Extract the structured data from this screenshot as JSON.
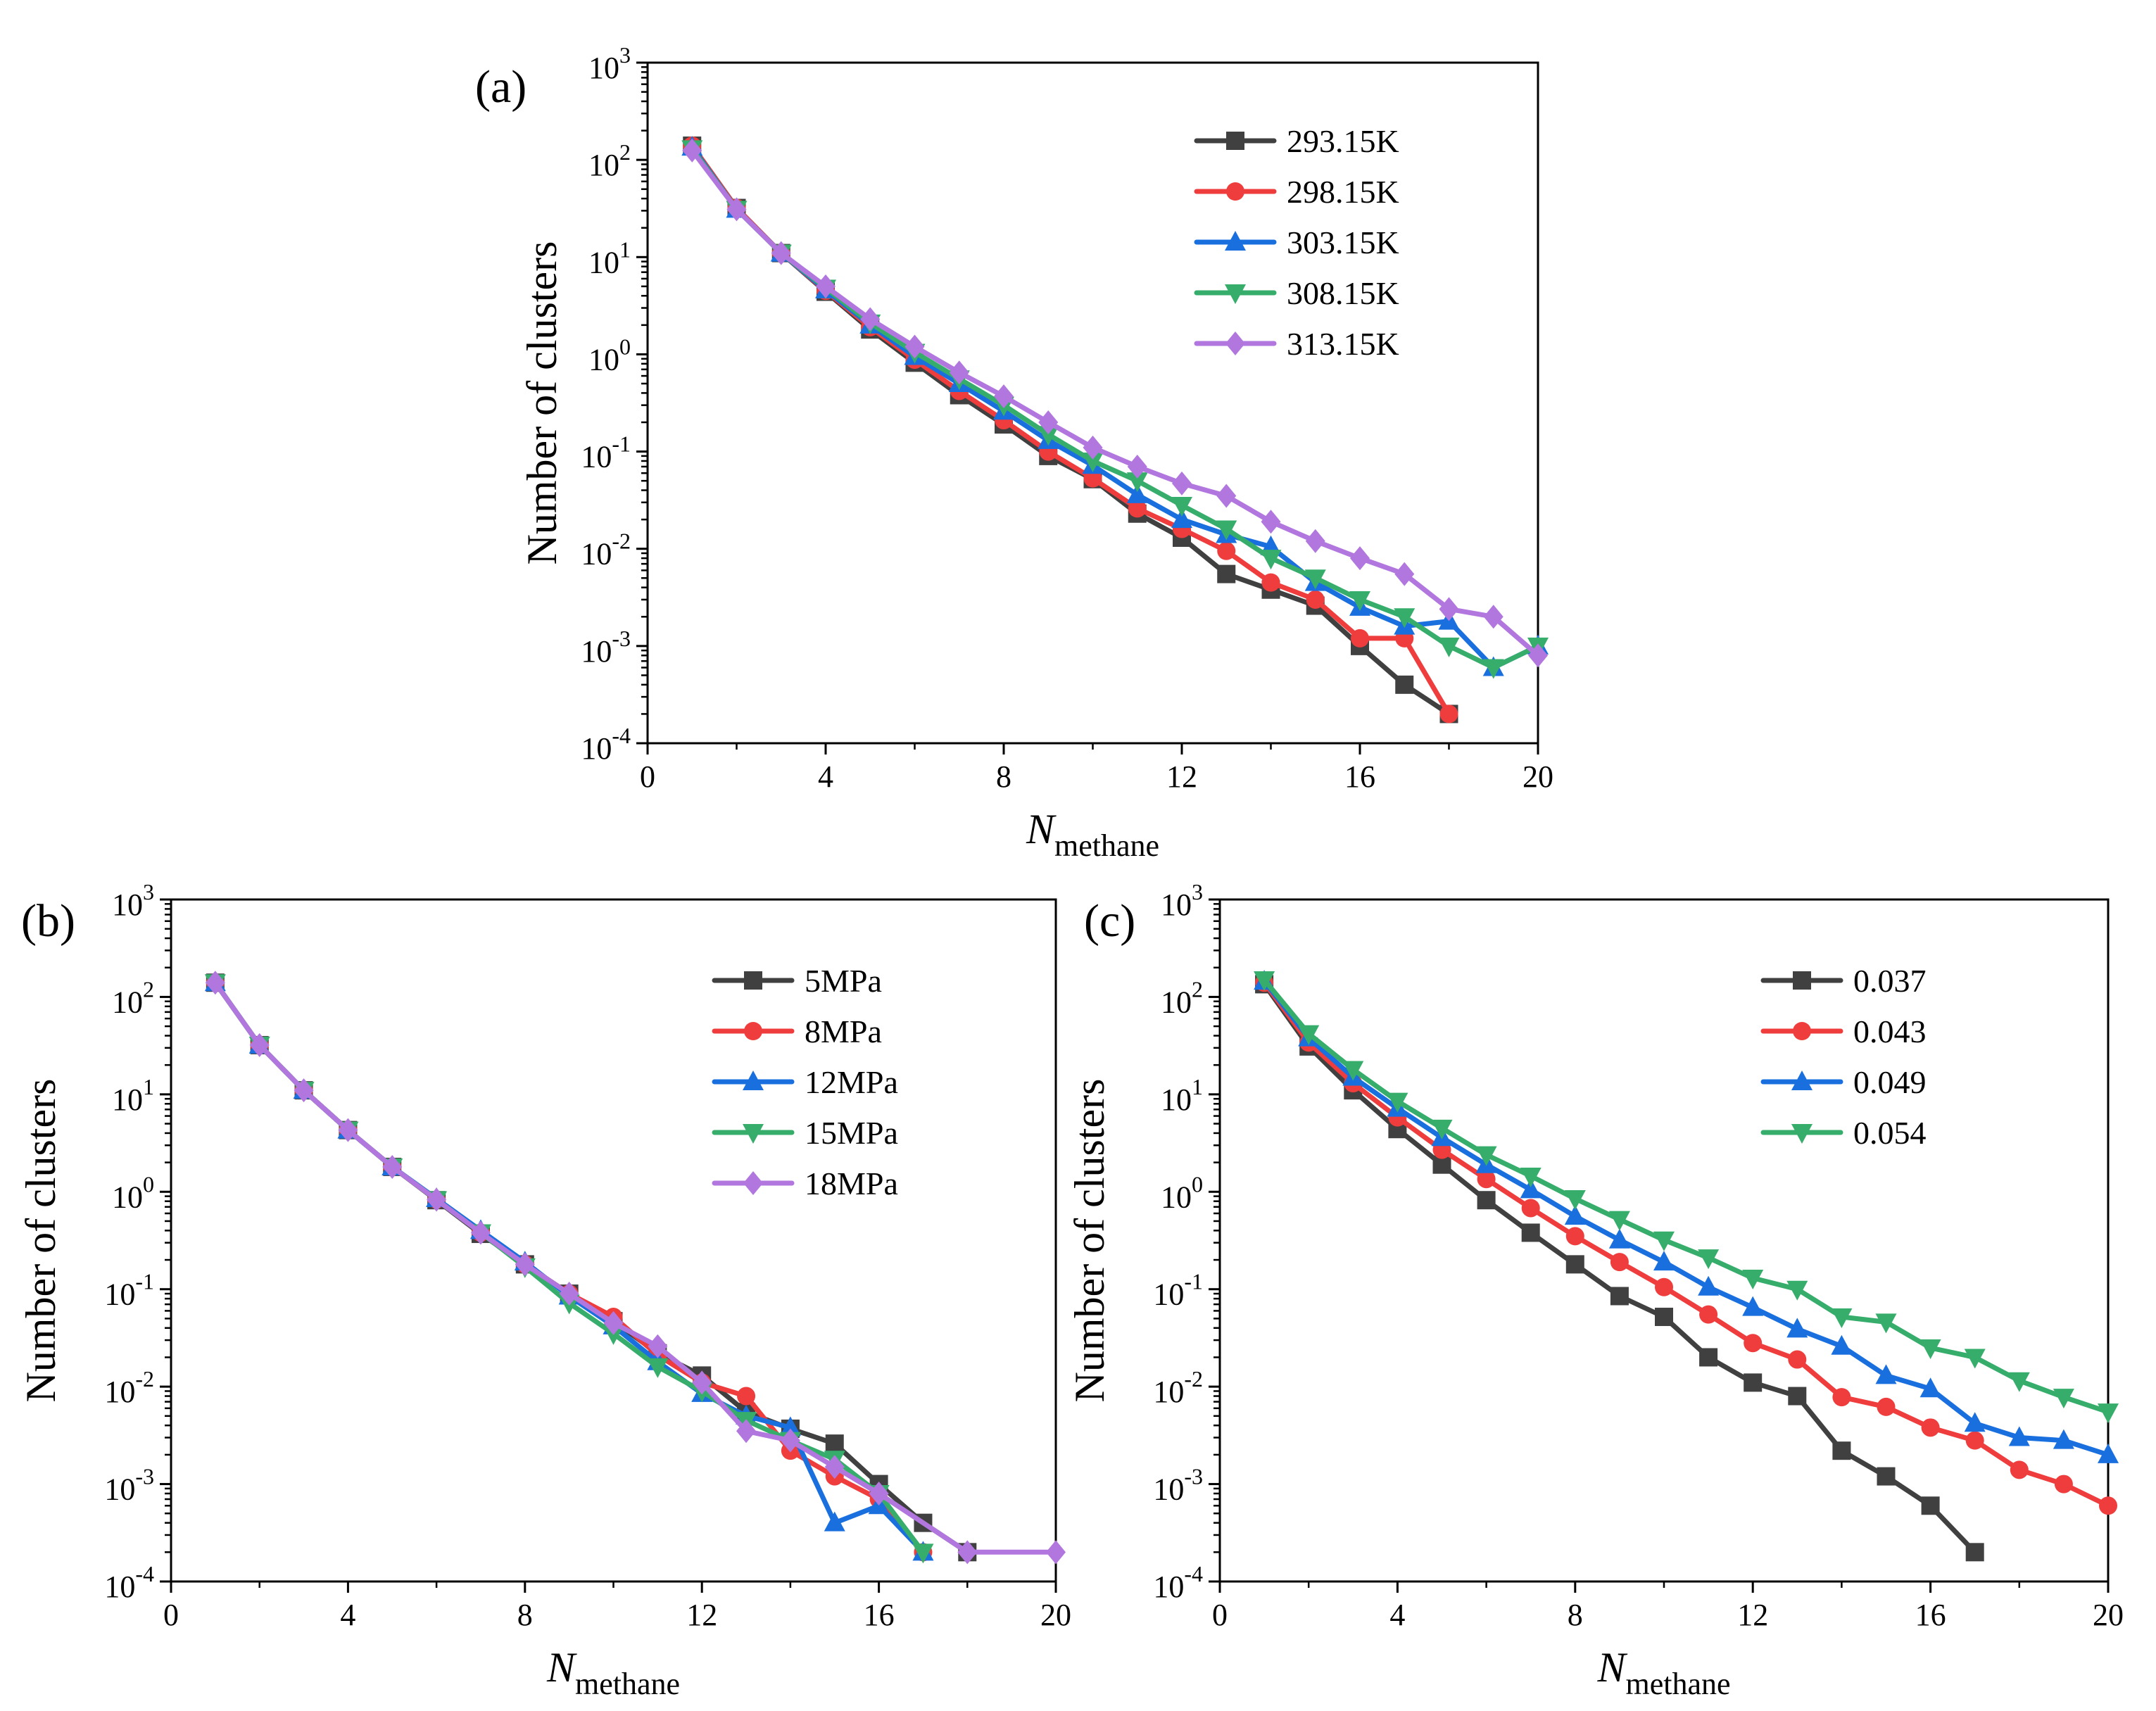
{
  "chart_data": [
    {
      "id": "a",
      "type": "line",
      "panel_label": "(a)",
      "xlabel": "N",
      "xlabel_sub": "methane",
      "ylabel": "Number of clusters",
      "yscale": "log",
      "xlim": [
        0,
        20
      ],
      "ylim": [
        0.0001,
        1000
      ],
      "xticks": [
        0,
        4,
        8,
        12,
        16,
        20
      ],
      "yticks": [
        {
          "mant": "10",
          "exp": "-4"
        },
        {
          "mant": "10",
          "exp": "-3"
        },
        {
          "mant": "10",
          "exp": "-2"
        },
        {
          "mant": "10",
          "exp": "-1"
        },
        {
          "mant": "10",
          "exp": "0"
        },
        {
          "mant": "10",
          "exp": "1"
        },
        {
          "mant": "10",
          "exp": "2"
        },
        {
          "mant": "10",
          "exp": "3"
        }
      ],
      "legend_position": "top-right",
      "series": [
        {
          "name": "293.15K",
          "color": "#404040",
          "marker": "square",
          "x": [
            1,
            2,
            3,
            4,
            5,
            6,
            7,
            8,
            9,
            10,
            11,
            12,
            13,
            14,
            15,
            16,
            17,
            18
          ],
          "y": [
            140,
            32,
            11,
            4.4,
            1.8,
            0.82,
            0.38,
            0.19,
            0.09,
            0.052,
            0.023,
            0.013,
            0.0055,
            0.0038,
            0.0026,
            0.001,
            0.0004,
            0.0002
          ]
        },
        {
          "name": "298.15K",
          "color": "#ef3c3c",
          "marker": "circle",
          "x": [
            1,
            2,
            3,
            4,
            5,
            6,
            7,
            8,
            9,
            10,
            11,
            12,
            13,
            14,
            15,
            16,
            17,
            18
          ],
          "y": [
            140,
            32,
            11,
            4.5,
            1.9,
            0.88,
            0.42,
            0.21,
            0.1,
            0.053,
            0.026,
            0.016,
            0.0095,
            0.0045,
            0.003,
            0.0012,
            0.0012,
            0.0002
          ]
        },
        {
          "name": "303.15K",
          "color": "#1a6fdf",
          "marker": "triangle-up",
          "x": [
            1,
            2,
            3,
            4,
            5,
            6,
            7,
            8,
            9,
            10,
            11,
            12,
            13,
            14,
            15,
            16,
            17,
            18,
            19,
            20
          ],
          "y": [
            135,
            31,
            11,
            4.6,
            2.0,
            0.95,
            0.5,
            0.26,
            0.13,
            0.072,
            0.036,
            0.02,
            0.014,
            0.0105,
            0.0045,
            0.0025,
            0.0016,
            0.0018,
            0.0006,
            0.001
          ]
        },
        {
          "name": "308.15K",
          "color": "#37ad6b",
          "marker": "triangle-down",
          "x": [
            1,
            2,
            3,
            4,
            5,
            6,
            7,
            8,
            9,
            10,
            11,
            12,
            13,
            14,
            15,
            16,
            17,
            18,
            19,
            20
          ],
          "y": [
            130,
            31,
            11,
            4.8,
            2.1,
            1.05,
            0.56,
            0.3,
            0.15,
            0.08,
            0.05,
            0.028,
            0.016,
            0.008,
            0.005,
            0.003,
            0.002,
            0.001,
            0.0006,
            0.001
          ]
        },
        {
          "name": "313.15K",
          "color": "#b177de",
          "marker": "diamond",
          "x": [
            1,
            2,
            3,
            4,
            5,
            6,
            7,
            8,
            9,
            10,
            11,
            12,
            13,
            14,
            15,
            16,
            17,
            18,
            19,
            20
          ],
          "y": [
            125,
            31,
            11,
            5.0,
            2.3,
            1.2,
            0.65,
            0.37,
            0.2,
            0.11,
            0.07,
            0.047,
            0.035,
            0.019,
            0.012,
            0.008,
            0.0055,
            0.0024,
            0.002,
            0.0008
          ]
        }
      ]
    },
    {
      "id": "b",
      "type": "line",
      "panel_label": "(b)",
      "xlabel": "N",
      "xlabel_sub": "methane",
      "ylabel": "Number of clusters",
      "yscale": "log",
      "xlim": [
        0,
        20
      ],
      "ylim": [
        0.0001,
        1000
      ],
      "xticks": [
        0,
        4,
        8,
        12,
        16,
        20
      ],
      "yticks": [
        {
          "mant": "10",
          "exp": "-4"
        },
        {
          "mant": "10",
          "exp": "-3"
        },
        {
          "mant": "10",
          "exp": "-2"
        },
        {
          "mant": "10",
          "exp": "-1"
        },
        {
          "mant": "10",
          "exp": "0"
        },
        {
          "mant": "10",
          "exp": "1"
        },
        {
          "mant": "10",
          "exp": "2"
        },
        {
          "mant": "10",
          "exp": "3"
        }
      ],
      "legend_position": "top-right",
      "series": [
        {
          "name": "5MPa",
          "color": "#404040",
          "marker": "square",
          "x": [
            1,
            2,
            3,
            4,
            5,
            6,
            7,
            8,
            9,
            10,
            11,
            12,
            13,
            14,
            15,
            16,
            17,
            18
          ],
          "y": [
            140,
            32,
            11,
            4.3,
            1.8,
            0.82,
            0.37,
            0.18,
            0.09,
            0.047,
            0.022,
            0.013,
            0.0055,
            0.0037,
            0.0026,
            0.001,
            0.0004,
            0.0002
          ]
        },
        {
          "name": "8MPa",
          "color": "#ef3c3c",
          "marker": "circle",
          "x": [
            1,
            2,
            3,
            4,
            5,
            6,
            7,
            8,
            9,
            10,
            11,
            12,
            13,
            14,
            15,
            16,
            17
          ],
          "y": [
            140,
            32,
            11,
            4.3,
            1.8,
            0.83,
            0.38,
            0.18,
            0.09,
            0.052,
            0.021,
            0.011,
            0.008,
            0.0022,
            0.0012,
            0.0007,
            0.0002
          ]
        },
        {
          "name": "12MPa",
          "color": "#1a6fdf",
          "marker": "triangle-up",
          "x": [
            1,
            2,
            3,
            4,
            5,
            6,
            7,
            8,
            9,
            10,
            11,
            12,
            13,
            14,
            15,
            16,
            17
          ],
          "y": [
            140,
            32,
            11,
            4.3,
            1.8,
            0.85,
            0.4,
            0.19,
            0.085,
            0.042,
            0.018,
            0.0085,
            0.005,
            0.0038,
            0.0004,
            0.0006,
            0.0002
          ]
        },
        {
          "name": "15MPa",
          "color": "#37ad6b",
          "marker": "triangle-down",
          "x": [
            1,
            2,
            3,
            4,
            5,
            6,
            7,
            8,
            9,
            10,
            11,
            12,
            13,
            14,
            15,
            16,
            17
          ],
          "y": [
            140,
            32,
            11,
            4.3,
            1.8,
            0.83,
            0.38,
            0.17,
            0.072,
            0.035,
            0.016,
            0.009,
            0.0045,
            0.0028,
            0.0018,
            0.0008,
            0.0002
          ]
        },
        {
          "name": "18MPa",
          "color": "#b177de",
          "marker": "diamond",
          "x": [
            1,
            2,
            3,
            4,
            5,
            6,
            7,
            8,
            9,
            10,
            11,
            12,
            13,
            14,
            15,
            16,
            18,
            20
          ],
          "y": [
            140,
            32,
            11,
            4.3,
            1.8,
            0.83,
            0.38,
            0.18,
            0.09,
            0.045,
            0.026,
            0.011,
            0.0035,
            0.0028,
            0.0015,
            0.0008,
            0.0002,
            0.0002
          ]
        }
      ]
    },
    {
      "id": "c",
      "type": "line",
      "panel_label": "(c)",
      "xlabel": "N",
      "xlabel_sub": "methane",
      "ylabel": "Number of clusters",
      "yscale": "log",
      "xlim": [
        0,
        20
      ],
      "ylim": [
        0.0001,
        1000
      ],
      "xticks": [
        0,
        4,
        8,
        12,
        16,
        20
      ],
      "yticks": [
        {
          "mant": "10",
          "exp": "-4"
        },
        {
          "mant": "10",
          "exp": "-3"
        },
        {
          "mant": "10",
          "exp": "-2"
        },
        {
          "mant": "10",
          "exp": "-1"
        },
        {
          "mant": "10",
          "exp": "0"
        },
        {
          "mant": "10",
          "exp": "1"
        },
        {
          "mant": "10",
          "exp": "2"
        },
        {
          "mant": "10",
          "exp": "3"
        }
      ],
      "legend_position": "top-right",
      "series": [
        {
          "name": "0.037",
          "color": "#404040",
          "marker": "square",
          "x": [
            1,
            2,
            3,
            4,
            5,
            6,
            7,
            8,
            9,
            10,
            11,
            12,
            13,
            14,
            15,
            16,
            17
          ],
          "y": [
            135,
            31,
            11,
            4.4,
            1.9,
            0.82,
            0.38,
            0.18,
            0.085,
            0.052,
            0.02,
            0.011,
            0.008,
            0.0022,
            0.0012,
            0.0006,
            0.0002
          ]
        },
        {
          "name": "0.043",
          "color": "#ef3c3c",
          "marker": "circle",
          "x": [
            1,
            2,
            3,
            4,
            5,
            6,
            7,
            8,
            9,
            10,
            11,
            12,
            13,
            14,
            15,
            16,
            17,
            18,
            19,
            20
          ],
          "y": [
            140,
            34,
            13,
            5.8,
            2.7,
            1.35,
            0.68,
            0.35,
            0.19,
            0.105,
            0.055,
            0.028,
            0.019,
            0.0078,
            0.0062,
            0.0038,
            0.0028,
            0.0014,
            0.001,
            0.0006
          ]
        },
        {
          "name": "0.049",
          "color": "#1a6fdf",
          "marker": "triangle-up",
          "x": [
            1,
            2,
            3,
            4,
            5,
            6,
            7,
            8,
            9,
            10,
            11,
            12,
            13,
            14,
            15,
            16,
            17,
            18,
            19,
            20
          ],
          "y": [
            145,
            38,
            15,
            7.2,
            3.6,
            1.9,
            1.05,
            0.56,
            0.32,
            0.19,
            0.105,
            0.065,
            0.039,
            0.026,
            0.013,
            0.0095,
            0.0042,
            0.003,
            0.0028,
            0.002
          ]
        },
        {
          "name": "0.054",
          "color": "#37ad6b",
          "marker": "triangle-down",
          "x": [
            1,
            2,
            3,
            4,
            5,
            6,
            7,
            8,
            9,
            10,
            11,
            12,
            13,
            14,
            15,
            16,
            17,
            18,
            19,
            20
          ],
          "y": [
            150,
            42,
            18,
            8.5,
            4.5,
            2.4,
            1.45,
            0.85,
            0.52,
            0.32,
            0.21,
            0.13,
            0.1,
            0.052,
            0.046,
            0.025,
            0.02,
            0.0115,
            0.0078,
            0.0055
          ]
        }
      ]
    }
  ]
}
